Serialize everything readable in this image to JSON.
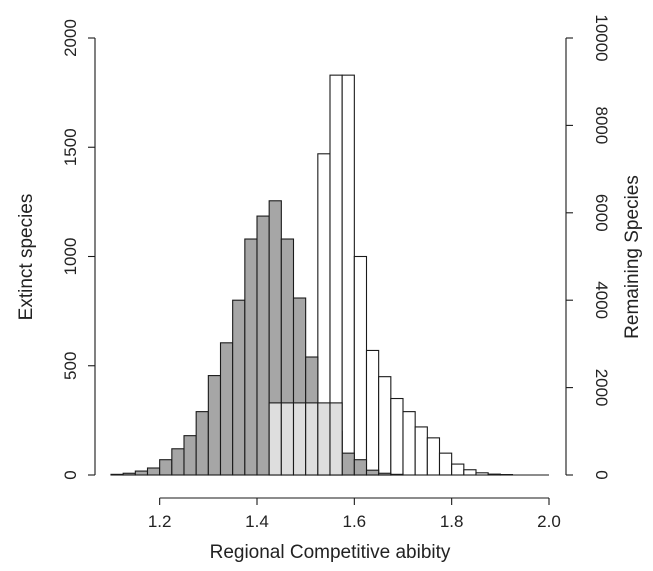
{
  "chart_data": {
    "type": "bar",
    "xlabel": "Regional Competitive abibity",
    "ylabel": "Extinct species",
    "y2label": "Remaining Species",
    "xlim": [
      1.1,
      2.0
    ],
    "ylim": [
      0,
      2000
    ],
    "y2lim": [
      0,
      10000
    ],
    "x_ticks": [
      "1.2",
      "1.4",
      "1.6",
      "1.8",
      "2.0"
    ],
    "y_ticks": [
      "0",
      "500",
      "1000",
      "1500",
      "2000"
    ],
    "y2_ticks": [
      "0",
      "2000",
      "4000",
      "6000",
      "8000",
      "10000"
    ],
    "bin_width": 0.025,
    "series": [
      {
        "axis": "right",
        "color": "#ffffff",
        "bins": [
          {
            "x": 1.525,
            "value": 7350
          },
          {
            "x": 1.55,
            "value": 9150
          },
          {
            "x": 1.575,
            "value": 9150
          },
          {
            "x": 1.6,
            "value": 5000
          },
          {
            "x": 1.625,
            "value": 2850
          },
          {
            "x": 1.65,
            "value": 2250
          },
          {
            "x": 1.675,
            "value": 1750
          },
          {
            "x": 1.7,
            "value": 1450
          },
          {
            "x": 1.725,
            "value": 1100
          },
          {
            "x": 1.75,
            "value": 850
          },
          {
            "x": 1.775,
            "value": 500
          },
          {
            "x": 1.8,
            "value": 250
          },
          {
            "x": 1.825,
            "value": 120
          },
          {
            "x": 1.85,
            "value": 50
          },
          {
            "x": 1.875,
            "value": 20
          },
          {
            "x": 1.9,
            "value": 10
          }
        ]
      },
      {
        "axis": "left",
        "color": "#a6a6a6",
        "bins": [
          {
            "x": 1.1,
            "value": 3
          },
          {
            "x": 1.125,
            "value": 8
          },
          {
            "x": 1.15,
            "value": 18
          },
          {
            "x": 1.175,
            "value": 32
          },
          {
            "x": 1.2,
            "value": 70
          },
          {
            "x": 1.225,
            "value": 120
          },
          {
            "x": 1.25,
            "value": 180
          },
          {
            "x": 1.275,
            "value": 290
          },
          {
            "x": 1.3,
            "value": 455
          },
          {
            "x": 1.325,
            "value": 605
          },
          {
            "x": 1.35,
            "value": 800
          },
          {
            "x": 1.375,
            "value": 1080
          },
          {
            "x": 1.4,
            "value": 1185
          },
          {
            "x": 1.425,
            "value": 1255
          },
          {
            "x": 1.45,
            "value": 1080
          },
          {
            "x": 1.475,
            "value": 810
          },
          {
            "x": 1.5,
            "value": 540
          },
          {
            "x": 1.525,
            "value": 310
          },
          {
            "x": 1.55,
            "value": 200
          },
          {
            "x": 1.575,
            "value": 100
          },
          {
            "x": 1.6,
            "value": 70
          },
          {
            "x": 1.625,
            "value": 22
          },
          {
            "x": 1.65,
            "value": 8
          },
          {
            "x": 1.675,
            "value": 3
          }
        ]
      },
      {
        "axis": "right",
        "color": "#dedede",
        "bins": [
          {
            "x": 1.425,
            "value": 1650
          },
          {
            "x": 1.45,
            "value": 1650
          },
          {
            "x": 1.475,
            "value": 1650
          },
          {
            "x": 1.5,
            "value": 1650
          },
          {
            "x": 1.525,
            "value": 1650
          },
          {
            "x": 1.55,
            "value": 1650
          }
        ]
      }
    ]
  }
}
